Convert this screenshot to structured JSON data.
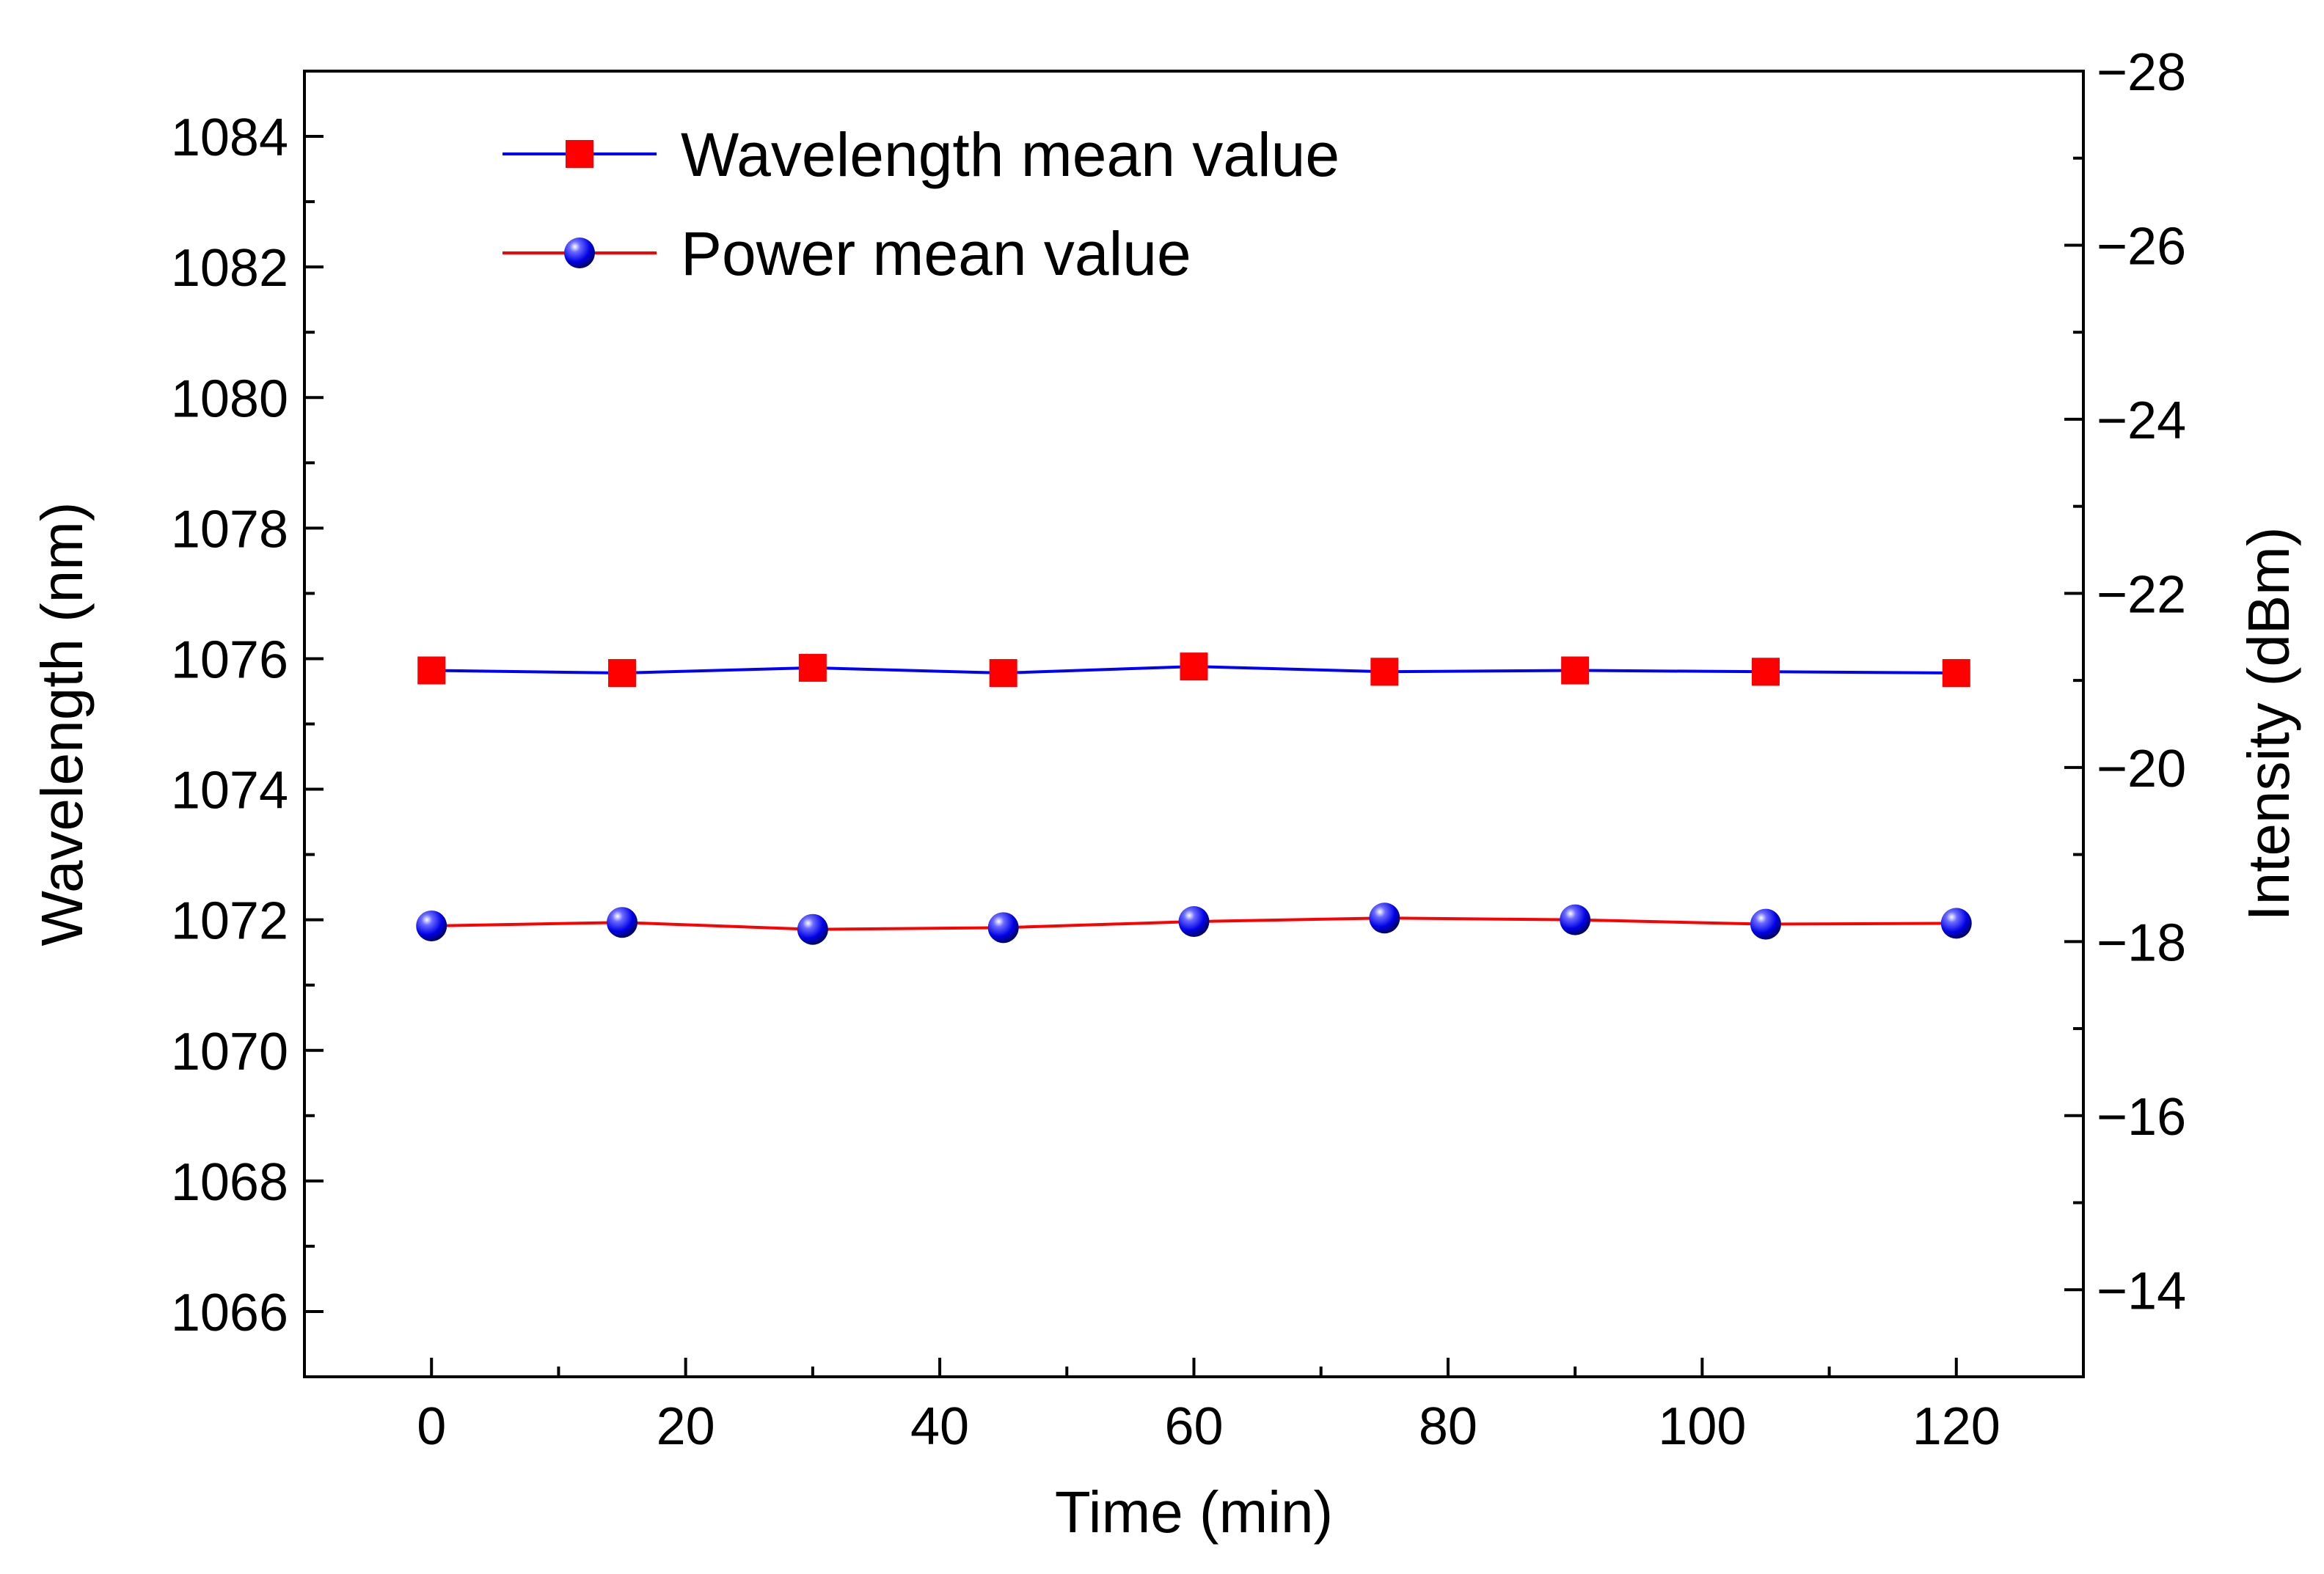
{
  "chart_data": {
    "type": "line",
    "title": "",
    "xlabel": "Time (min)",
    "ylabel": "Wavelength (nm)",
    "y2label": "Intensity (dBm)",
    "x": [
      0,
      15,
      30,
      45,
      60,
      75,
      90,
      105,
      120
    ],
    "xlim": [
      -10,
      130
    ],
    "ylim": [
      1065,
      1085
    ],
    "y2lim": [
      -13,
      -28
    ],
    "x_ticks": [
      0,
      20,
      40,
      60,
      80,
      100,
      120
    ],
    "y_ticks": [
      1066,
      1068,
      1070,
      1072,
      1074,
      1076,
      1078,
      1080,
      1082,
      1084
    ],
    "y2_ticks": [
      -14,
      -16,
      -18,
      -20,
      -22,
      -24,
      -26,
      -28
    ],
    "legend_position": "top-left",
    "grid": false,
    "series": [
      {
        "name": "Wavelength mean value",
        "axis": "left",
        "values": [
          1075.82,
          1075.78,
          1075.86,
          1075.78,
          1075.88,
          1075.8,
          1075.82,
          1075.8,
          1075.78
        ],
        "line_color": "#0000ff",
        "marker": "square",
        "marker_color": "#ff0000"
      },
      {
        "name": "Power mean value",
        "axis": "right",
        "values": [
          -18.18,
          -18.22,
          -18.14,
          -18.16,
          -18.23,
          -18.27,
          -18.25,
          -18.2,
          -18.21
        ],
        "line_color": "#ff0000",
        "marker": "circle",
        "marker_color": "#0000ff"
      }
    ]
  }
}
